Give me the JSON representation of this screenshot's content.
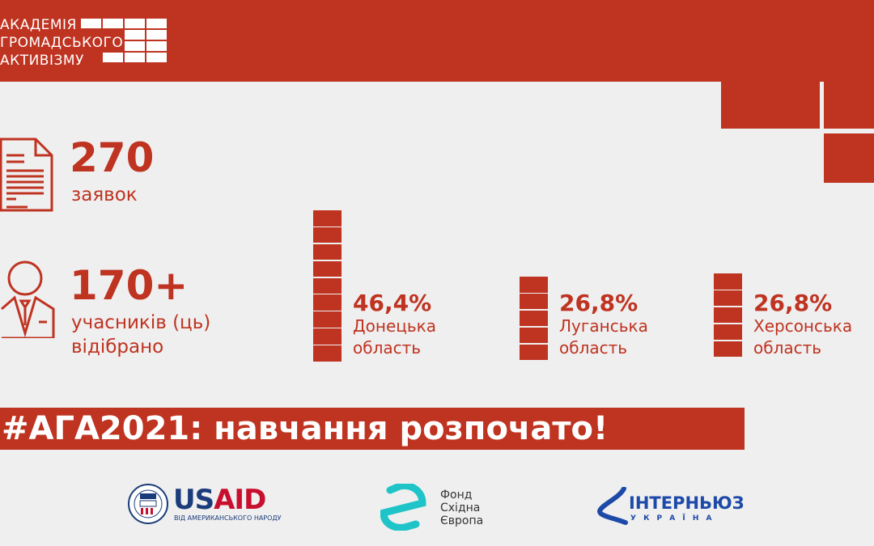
{
  "header": {
    "logo_lines": [
      "АКАДЕМІЯ",
      "ГРОМАДСЬКОГО",
      "АКТИВІЗМУ"
    ]
  },
  "stats": [
    {
      "icon": "document-icon",
      "value": "270",
      "label": "заявок"
    },
    {
      "icon": "person-icon",
      "value": "170+",
      "label_lines": [
        "учасників (ць)",
        "відібрано"
      ]
    }
  ],
  "regions": [
    {
      "percent": "46,4%",
      "name": "Донецька",
      "suffix": "область",
      "value": 46.4,
      "blocks": 9
    },
    {
      "percent": "26,8%",
      "name": "Луганська",
      "suffix": "область",
      "value": 26.8,
      "blocks": 5
    },
    {
      "percent": "26,8%",
      "name": "Херсонська",
      "suffix": "область",
      "value": 26.8,
      "blocks": 5
    }
  ],
  "banner": "#АГА2021: навчання розпочато!",
  "partners": {
    "usaid": {
      "us": "US",
      "aid": "AID",
      "tagline": "ВІД АМЕРИКАНСЬКОГО НАРОДУ",
      "seal": "USAID"
    },
    "fund": {
      "lines": [
        "Фонд",
        "Східна",
        "Європа"
      ]
    },
    "internews": {
      "name": "ІНТЕРНЬЮЗ",
      "sub": "У К Р А Ї Н А"
    }
  },
  "colors": {
    "accent": "#bf3321",
    "background": "#efefef"
  }
}
